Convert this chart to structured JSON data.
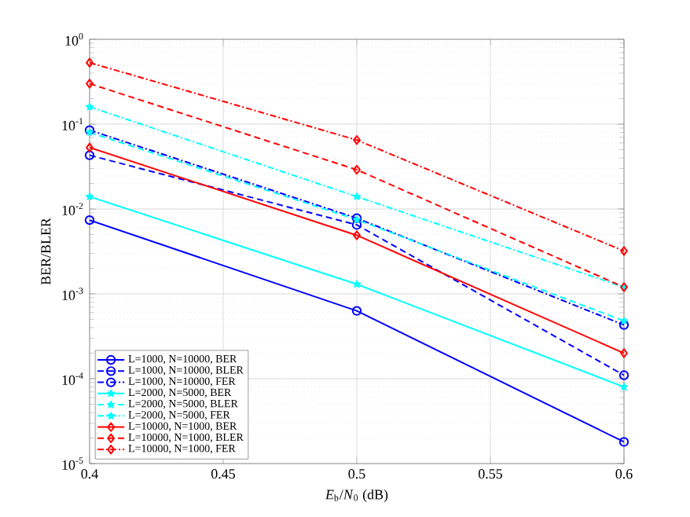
{
  "chart_data": {
    "type": "line",
    "xlabel": "*E*$_{b}$/*N*$_{0}$ (dB)",
    "ylabel": "BER/BLER",
    "x": [
      0.4,
      0.5,
      0.6
    ],
    "log": "y",
    "grid": true,
    "legend": "bottom left",
    "xlim": [
      0.4,
      0.6
    ],
    "ylim": [
      1e-05,
      1
    ],
    "xticks": [
      0.4,
      0.45,
      0.5,
      0.55,
      0.6
    ],
    "yticks": [
      {
        "value": 1e-05,
        "label": "10$^{-5}$"
      },
      {
        "value": 0.0001,
        "label": "10$^{-4}$"
      },
      {
        "value": 0.001,
        "label": "10$^{-3}$"
      },
      {
        "value": 0.01,
        "label": "10$^{-2}$"
      },
      {
        "value": 0.1,
        "label": "10$^{-1}$"
      },
      {
        "value": 1,
        "label": "10$^{0}$"
      }
    ],
    "series": [
      {
        "name": "L=1000, N=10000, BER",
        "color": "#0000ff",
        "marker": "circle",
        "line_style": "solid",
        "values": [
          0.0074,
          0.00063,
          1.8e-05
        ]
      },
      {
        "name": "L=1000, N=10000, BLER",
        "color": "#0000ff",
        "marker": "circle",
        "line_style": "dashed",
        "values": [
          0.043,
          0.0065,
          0.00011
        ]
      },
      {
        "name": "L=1000, N=10000, FER",
        "color": "#0000ff",
        "marker": "circle",
        "line_style": "dashdot",
        "values": [
          0.085,
          0.0078,
          0.00043
        ]
      },
      {
        "name": "L=2000, N=5000, BER",
        "color": "#00ffff",
        "marker": "star",
        "line_style": "solid",
        "values": [
          0.014,
          0.0013,
          8e-05
        ]
      },
      {
        "name": "L=2000, N=5000, BLER",
        "color": "#00ffff",
        "marker": "star",
        "line_style": "dashed",
        "values": [
          0.08,
          0.0075,
          0.00048
        ]
      },
      {
        "name": "L=2000, N=5000, FER",
        "color": "#00ffff",
        "marker": "star",
        "line_style": "dashdot",
        "values": [
          0.16,
          0.014,
          0.0012
        ]
      },
      {
        "name": "L=10000, N=1000, BER",
        "color": "#ff0000",
        "marker": "diamond",
        "line_style": "solid",
        "values": [
          0.053,
          0.0049,
          0.0002
        ]
      },
      {
        "name": "L=10000, N=1000, BLER",
        "color": "#ff0000",
        "marker": "diamond",
        "line_style": "dashed",
        "values": [
          0.3,
          0.029,
          0.0012
        ]
      },
      {
        "name": "L=10000, N=1000, FER",
        "color": "#ff0000",
        "marker": "diamond",
        "line_style": "dashdot",
        "values": [
          0.53,
          0.065,
          0.0032
        ]
      }
    ]
  }
}
